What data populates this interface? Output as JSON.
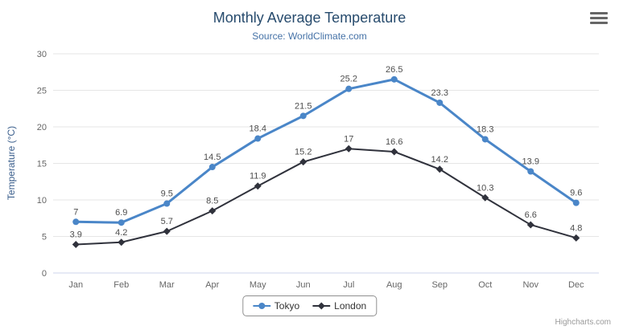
{
  "header": {
    "title": "Monthly Average Temperature",
    "subtitle": "Source: WorldClimate.com"
  },
  "colors": {
    "title": "#274b6d",
    "subtitle": "#4572a7",
    "axis_title": "#3a5e8c",
    "axis_text": "#666666",
    "gridline": "#e6e6e6",
    "axis_line": "#ccd6eb",
    "data_label": "#4d4d4d"
  },
  "menu": {
    "icon": "hamburger-menu-icon"
  },
  "credits": "Highcharts.com",
  "chart_data": {
    "type": "line",
    "title": "Monthly Average Temperature",
    "subtitle": "Source: WorldClimate.com",
    "categories": [
      "Jan",
      "Feb",
      "Mar",
      "Apr",
      "May",
      "Jun",
      "Jul",
      "Aug",
      "Sep",
      "Oct",
      "Nov",
      "Dec"
    ],
    "series": [
      {
        "name": "Tokyo",
        "color": "#4a86c8",
        "marker": "circle",
        "values": [
          7,
          6.9,
          9.5,
          14.5,
          18.4,
          21.5,
          25.2,
          26.5,
          23.3,
          18.3,
          13.9,
          9.6
        ]
      },
      {
        "name": "London",
        "color": "#30323c",
        "marker": "diamond",
        "values": [
          3.9,
          4.2,
          5.7,
          8.5,
          11.9,
          15.2,
          17,
          16.6,
          14.2,
          10.3,
          6.6,
          4.8
        ]
      }
    ],
    "xlabel": "",
    "ylabel": "Temperature (°C)",
    "ylim": [
      0,
      30
    ],
    "ytick_step": 5,
    "grid": true,
    "legend_position": "bottom",
    "data_labels": true
  }
}
